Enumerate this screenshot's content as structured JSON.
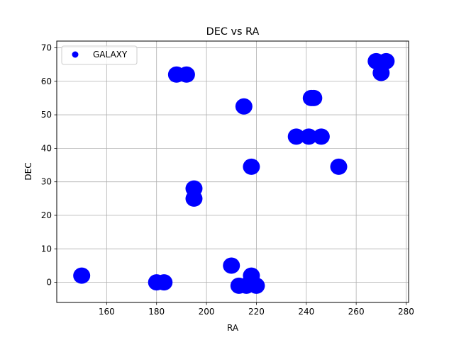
{
  "chart_data": {
    "type": "scatter",
    "title": "DEC vs RA",
    "xlabel": "RA",
    "ylabel": "DEC",
    "xlim": [
      140,
      281
    ],
    "ylim": [
      -6,
      72
    ],
    "xticks": [
      160,
      180,
      200,
      220,
      240,
      260,
      280
    ],
    "yticks": [
      0,
      10,
      20,
      30,
      40,
      50,
      60,
      70
    ],
    "grid": true,
    "legend_position": "upper-left",
    "series": [
      {
        "name": "GALAXY",
        "color": "#0000ff",
        "points": [
          {
            "x": 150,
            "y": 2
          },
          {
            "x": 180,
            "y": 0
          },
          {
            "x": 183,
            "y": 0
          },
          {
            "x": 188,
            "y": 62
          },
          {
            "x": 192,
            "y": 62
          },
          {
            "x": 195,
            "y": 28
          },
          {
            "x": 195,
            "y": 25
          },
          {
            "x": 210,
            "y": 5
          },
          {
            "x": 213,
            "y": -1
          },
          {
            "x": 216,
            "y": -1
          },
          {
            "x": 218,
            "y": 2
          },
          {
            "x": 220,
            "y": -1
          },
          {
            "x": 215,
            "y": 52.5
          },
          {
            "x": 218,
            "y": 34.5
          },
          {
            "x": 236,
            "y": 43.5
          },
          {
            "x": 241,
            "y": 43.5
          },
          {
            "x": 246,
            "y": 43.5
          },
          {
            "x": 242,
            "y": 55
          },
          {
            "x": 243,
            "y": 55
          },
          {
            "x": 253,
            "y": 34.5
          },
          {
            "x": 268,
            "y": 66
          },
          {
            "x": 272,
            "y": 66
          },
          {
            "x": 270,
            "y": 62.5
          }
        ]
      }
    ]
  }
}
